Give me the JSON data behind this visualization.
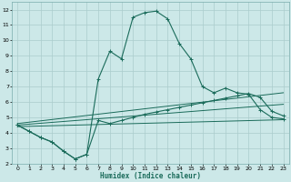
{
  "xlabel": "Humidex (Indice chaleur)",
  "background_color": "#cce8e8",
  "line_color": "#1a6b5a",
  "grid_color": "#aacccc",
  "xlim": [
    -0.5,
    23.5
  ],
  "ylim": [
    2,
    12.5
  ],
  "xticks": [
    0,
    1,
    2,
    3,
    4,
    5,
    6,
    7,
    8,
    9,
    10,
    11,
    12,
    13,
    14,
    15,
    16,
    17,
    18,
    19,
    20,
    21,
    22,
    23
  ],
  "yticks": [
    2,
    3,
    4,
    5,
    6,
    7,
    8,
    9,
    10,
    11,
    12
  ],
  "curve_upper_x": [
    0,
    1,
    2,
    3,
    4,
    5,
    6,
    7,
    8,
    9,
    10,
    11,
    12,
    13,
    14,
    15,
    16,
    17,
    18,
    19,
    20,
    21,
    22,
    23
  ],
  "curve_upper_y": [
    4.5,
    4.1,
    3.7,
    3.4,
    2.8,
    2.3,
    2.6,
    7.5,
    9.3,
    8.8,
    11.5,
    11.8,
    11.9,
    11.4,
    9.8,
    8.8,
    7.0,
    6.6,
    6.9,
    6.6,
    6.5,
    5.5,
    5.0,
    4.9
  ],
  "curve_lower_x": [
    0,
    1,
    2,
    3,
    4,
    5,
    6,
    7,
    8,
    9,
    10,
    11,
    12,
    13,
    14,
    15,
    16,
    17,
    18,
    19,
    20,
    21,
    22,
    23
  ],
  "curve_lower_y": [
    4.5,
    4.1,
    3.7,
    3.4,
    2.8,
    2.3,
    2.6,
    4.8,
    4.6,
    4.8,
    5.0,
    5.2,
    5.35,
    5.5,
    5.65,
    5.8,
    5.95,
    6.1,
    6.25,
    6.4,
    6.55,
    6.3,
    5.4,
    5.1
  ],
  "line1_x": [
    0,
    23
  ],
  "line1_y": [
    4.4,
    4.85
  ],
  "line2_x": [
    0,
    23
  ],
  "line2_y": [
    4.5,
    5.85
  ],
  "line3_x": [
    0,
    23
  ],
  "line3_y": [
    4.6,
    6.6
  ]
}
